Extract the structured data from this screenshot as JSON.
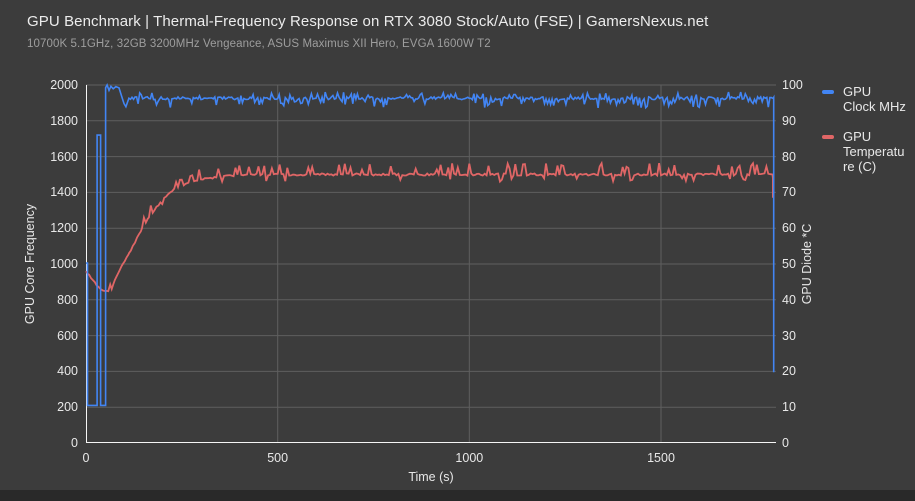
{
  "chart_data": {
    "type": "line",
    "title": "GPU Benchmark | Thermal-Frequency Response on RTX 3080 Stock/Auto (FSE) | GamersNexus.net",
    "subtitle": "10700K 5.1GHz, 32GB 3200MHz Vengeance, ASUS Maximus XII Hero, EVGA 1600W T2",
    "xlabel": "Time (s)",
    "ylabel_left": "GPU Core Frequency",
    "ylabel_right": "GPU Diode *C",
    "x_range": [
      0,
      1800
    ],
    "y_left_range": [
      0,
      2000
    ],
    "y_right_range": [
      0,
      100
    ],
    "x_ticks": [
      0,
      500,
      1000,
      1500
    ],
    "y_left_ticks": [
      0,
      200,
      400,
      600,
      800,
      1000,
      1200,
      1400,
      1600,
      1800,
      2000
    ],
    "y_right_ticks": [
      0,
      10,
      20,
      30,
      40,
      50,
      60,
      70,
      80,
      90,
      100
    ],
    "grid": true,
    "legend_position": "right",
    "colors": {
      "background": "#3c3c3c",
      "grid": "#5f5f5f",
      "axis_line": "#f5f5f5",
      "tick_text": "#e8e8e8",
      "title_text": "#ececec",
      "subtitle_text": "#9e9e9e",
      "gpu_clock_blue": "#4285f4",
      "gpu_temp_red": "#e06666"
    },
    "series": [
      {
        "id": "gpu-clock",
        "name": "GPU Clock MHz",
        "axis": "left",
        "color": "#4285f4",
        "stroke_width": 1.6,
        "z": 1,
        "keypoints": [
          [
            0,
            1005
          ],
          [
            4,
            1005
          ],
          [
            4,
            210
          ],
          [
            29,
            210
          ],
          [
            29,
            1720
          ],
          [
            38,
            1720
          ],
          [
            38,
            210
          ],
          [
            51,
            210
          ],
          [
            51,
            1985
          ],
          [
            55,
            2000
          ],
          [
            60,
            1970
          ],
          [
            65,
            1993
          ],
          [
            71,
            1979
          ],
          [
            78,
            1991
          ],
          [
            86,
            1984
          ],
          [
            93,
            1938
          ],
          [
            99,
            1896
          ],
          [
            104,
            1878
          ],
          [
            112,
            1926
          ],
          [
            1793,
            1926
          ],
          [
            1794,
            1930
          ],
          [
            1794,
            395
          ]
        ],
        "noise": {
          "step": 4,
          "jitter": 8,
          "jitter_from": 112,
          "spike_from": 125,
          "down_chance": 0.18,
          "down_min": 15,
          "down_max": 55,
          "up_chance": 0.12,
          "up_min": 12,
          "up_max": 35
        }
      },
      {
        "id": "gpu-temperature",
        "name": "GPU Temperature (C)",
        "axis": "right",
        "color": "#e06666",
        "stroke_width": 1.8,
        "z": 0,
        "keypoints": [
          [
            0,
            48
          ],
          [
            8,
            47
          ],
          [
            18,
            45.5
          ],
          [
            28,
            44
          ],
          [
            36,
            43.2
          ],
          [
            44,
            42.6
          ],
          [
            58,
            42.4
          ],
          [
            63,
            44.3
          ],
          [
            67,
            43
          ],
          [
            75,
            45.5
          ],
          [
            83,
            47.2
          ],
          [
            96,
            50
          ],
          [
            112,
            53
          ],
          [
            128,
            56
          ],
          [
            146,
            60
          ],
          [
            164,
            63
          ],
          [
            184,
            66
          ],
          [
            204,
            68.5
          ],
          [
            220,
            70
          ],
          [
            240,
            71.5
          ],
          [
            262,
            72.5
          ],
          [
            290,
            73.3
          ],
          [
            320,
            74
          ],
          [
            360,
            74.6
          ],
          [
            420,
            75
          ],
          [
            1791,
            75
          ],
          [
            1792,
            74
          ],
          [
            1792,
            68.5
          ]
        ],
        "noise": {
          "step": 5,
          "jitter": 0.3,
          "jitter_from": 0,
          "spike_from": 150,
          "down_chance": 0.08,
          "down_min": 1,
          "down_max": 2,
          "up_chance": 0.16,
          "up_min": 1.3,
          "up_max": 3.2
        }
      }
    ]
  },
  "legend": {
    "entries": [
      {
        "name": "GPU Clock MHz",
        "lines": [
          "GPU",
          "Clock MHz"
        ],
        "color": "#4285f4"
      },
      {
        "name": "GPU Temperature (C)",
        "lines": [
          "GPU",
          "Temperatu",
          "re (C)"
        ],
        "color": "#e06666"
      }
    ]
  },
  "layout_text": {
    "note": ""
  }
}
